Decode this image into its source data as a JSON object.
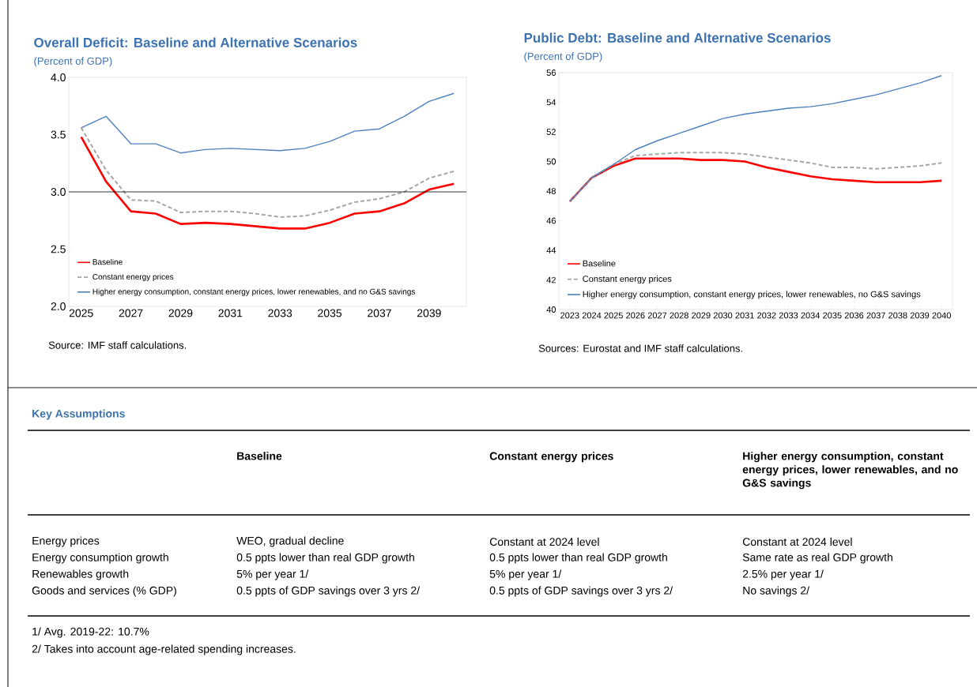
{
  "chart_data": [
    {
      "type": "line",
      "title": "Overall Deficit: Baseline and Alternative Scenarios",
      "subtitle": "(Percent of GDP)",
      "x": [
        2025,
        2026,
        2027,
        2028,
        2029,
        2030,
        2031,
        2032,
        2033,
        2034,
        2035,
        2036,
        2037,
        2038,
        2039,
        2040
      ],
      "xlim": [
        2024.5,
        2040.5
      ],
      "xticks": [
        2025,
        2027,
        2029,
        2031,
        2033,
        2035,
        2037,
        2039
      ],
      "ylim": [
        2,
        4
      ],
      "yticks": [
        {
          "value": 2,
          "label": "2.0"
        },
        {
          "value": 2.5,
          "label": "2.5"
        },
        {
          "value": 3,
          "label": "3.0"
        },
        {
          "value": 3.5,
          "label": "3.5"
        },
        {
          "value": 4,
          "label": "4.0"
        }
      ],
      "series": [
        {
          "name": "Baseline",
          "color": "#ff0000",
          "values": [
            3.48,
            3.09,
            2.83,
            2.81,
            2.72,
            2.73,
            2.72,
            2.7,
            2.68,
            2.68,
            2.73,
            2.81,
            2.83,
            2.9,
            3.02,
            3.07
          ]
        },
        {
          "name": "Constant energy prices",
          "color": "#a6a6a6",
          "line_style": "dashed",
          "values": [
            3.56,
            3.19,
            2.93,
            2.92,
            2.82,
            2.83,
            2.83,
            2.81,
            2.78,
            2.79,
            2.84,
            2.91,
            2.94,
            3.0,
            3.12,
            3.18
          ]
        },
        {
          "name": "Higher energy consumption, constant energy prices, lower renewables, and no G&S savings",
          "color": "#4f81bd",
          "values": [
            3.56,
            3.66,
            3.42,
            3.42,
            3.34,
            3.37,
            3.38,
            3.37,
            3.36,
            3.38,
            3.44,
            3.53,
            3.55,
            3.66,
            3.79,
            3.86
          ]
        }
      ],
      "ref_lines": [
        {
          "axis": "y",
          "value": 3,
          "color": "#000000"
        }
      ],
      "legend": "bottom left",
      "annotations": [
        "Source: IMF staff calculations."
      ]
    },
    {
      "type": "line",
      "title": "Public Debt: Baseline and Alternative Scenarios",
      "subtitle": "(Percent of GDP)",
      "x": [
        2023,
        2024,
        2025,
        2026,
        2027,
        2028,
        2029,
        2030,
        2031,
        2032,
        2033,
        2034,
        2035,
        2036,
        2037,
        2038,
        2039,
        2040
      ],
      "xlim": [
        2022.5,
        2040.5
      ],
      "xticks": [
        2023,
        2024,
        2025,
        2026,
        2027,
        2028,
        2029,
        2030,
        2031,
        2032,
        2033,
        2034,
        2035,
        2036,
        2037,
        2038,
        2039,
        2040
      ],
      "ylim": [
        40,
        56
      ],
      "yticks": [
        40,
        42,
        44,
        46,
        48,
        50,
        52,
        54,
        56
      ],
      "series": [
        {
          "name": "Baseline",
          "color": "#ff0000",
          "values": [
            47.3,
            48.9,
            49.7,
            50.2,
            50.2,
            50.2,
            50.1,
            50.1,
            50.0,
            49.6,
            49.3,
            49.0,
            48.8,
            48.7,
            48.6,
            48.6,
            48.6,
            48.7
          ]
        },
        {
          "name": "Constant energy prices",
          "color": "#a6a6a6",
          "line_style": "dashed",
          "values": [
            47.3,
            48.9,
            49.8,
            50.4,
            50.5,
            50.6,
            50.6,
            50.6,
            50.5,
            50.3,
            50.1,
            49.9,
            49.6,
            49.6,
            49.5,
            49.6,
            49.7,
            49.9
          ]
        },
        {
          "name": "Higher energy consumption, constant energy prices, lower renewables, no G&S savings",
          "color": "#4f81bd",
          "values": [
            47.3,
            48.9,
            49.8,
            50.8,
            51.4,
            51.9,
            52.4,
            52.9,
            53.2,
            53.4,
            53.6,
            53.7,
            53.9,
            54.2,
            54.5,
            54.9,
            55.3,
            55.8
          ]
        }
      ],
      "legend": "bottom left",
      "annotations": [
        "Sources: Eurostat and IMF staff calculations."
      ]
    },
    {
      "type": "other",
      "title": "Key Assumptions",
      "categories": [
        "Baseline",
        "Constant energy prices",
        "Higher energy consumption, constant energy prices, lower renewables, and no G&S savings"
      ],
      "y_categories": [
        "Energy prices",
        "Energy consumption growth",
        "Renewables growth",
        "Goods and services (% GDP)"
      ],
      "cell_labels": [
        [
          "WEO, gradual decline",
          "Constant at 2024 level",
          "Constant at 2024 level"
        ],
        [
          "0.5 ppts lower than real GDP growth",
          "0.5 ppts lower than real GDP growth",
          "Same rate as real GDP growth"
        ],
        [
          "5% per year 1/",
          "5% per year 1/",
          "2.5% per year 1/"
        ],
        [
          "0.5 ppts of GDP savings over 3 yrs 2/",
          "0.5 ppts of GDP savings over 3 yrs 2/",
          "No savings 2/"
        ]
      ],
      "annotations": [
        "1/ Avg. 2019-22: 10.7%",
        "2/ Takes into account age-related spending increases."
      ]
    }
  ]
}
